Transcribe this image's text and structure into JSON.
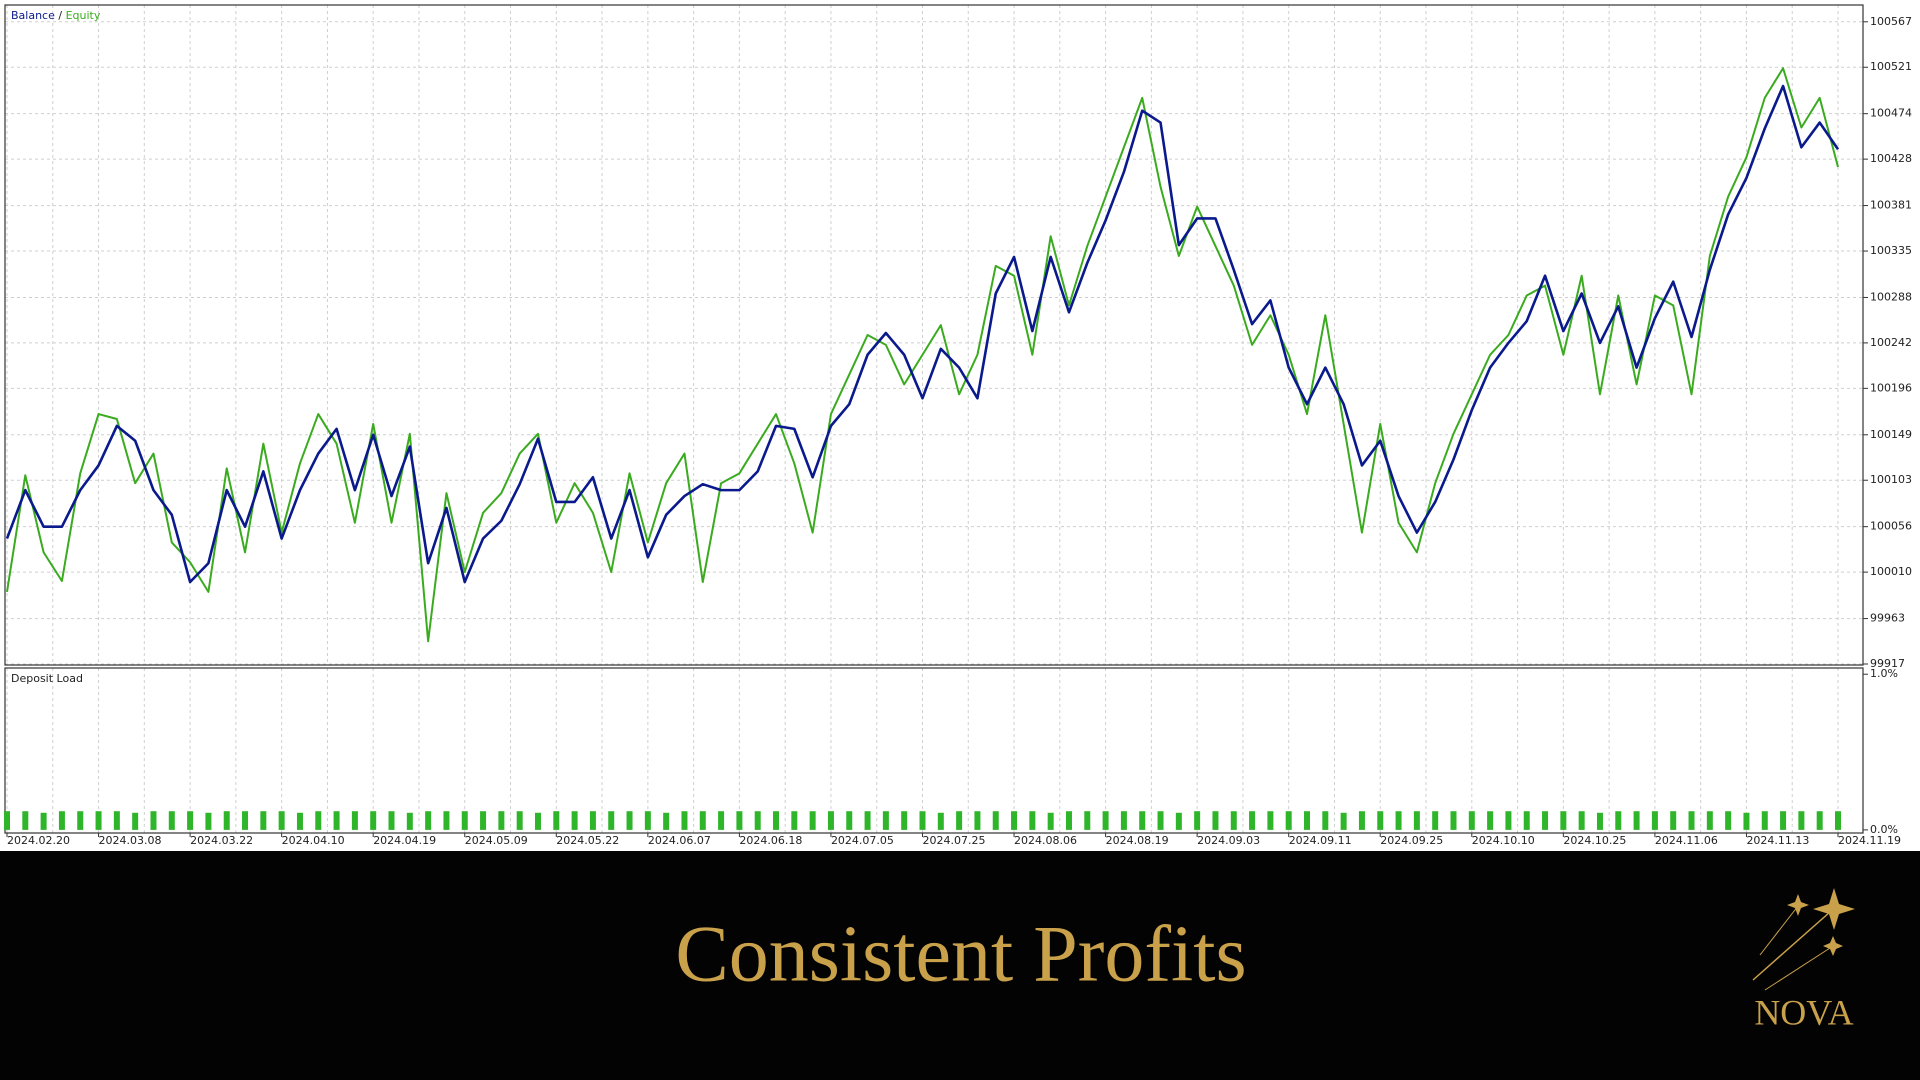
{
  "chart_data": {
    "type": "line",
    "legend_separator": " / ",
    "categories": [
      "2024.02.20",
      null,
      null,
      null,
      null,
      "2024.03.08",
      null,
      null,
      null,
      null,
      "2024.03.22",
      null,
      null,
      null,
      null,
      "2024.04.10",
      null,
      null,
      null,
      null,
      "2024.04.19",
      null,
      null,
      null,
      null,
      "2024.05.09",
      null,
      null,
      null,
      null,
      "2024.05.22",
      null,
      null,
      null,
      null,
      "2024.06.07",
      null,
      null,
      null,
      null,
      "2024.06.18",
      null,
      null,
      null,
      null,
      "2024.07.05",
      null,
      null,
      null,
      null,
      "2024.07.25",
      null,
      null,
      null,
      null,
      "2024.08.06",
      null,
      null,
      null,
      null,
      "2024.08.19",
      null,
      null,
      null,
      null,
      "2024.09.03",
      null,
      null,
      null,
      null,
      "2024.09.11",
      null,
      null,
      null,
      null,
      "2024.09.25",
      null,
      null,
      null,
      null,
      "2024.10.10",
      null,
      null,
      null,
      null,
      "2024.10.25",
      null,
      null,
      null,
      null,
      "2024.11.06",
      null,
      null,
      null,
      null,
      "2024.11.13",
      null,
      null,
      null,
      null,
      "2024.11.19"
    ],
    "series": [
      {
        "name": "Balance",
        "color": "#0a1a8c",
        "values": [
          100044,
          100093,
          100056,
          100056,
          100093,
          100118,
          100158,
          100143,
          100093,
          100068,
          100000,
          100019,
          100093,
          100056,
          100112,
          100044,
          100093,
          100130,
          100155,
          100093,
          100149,
          100087,
          100137,
          100019,
          100075,
          100000,
          100044,
          100062,
          100099,
          100145,
          100081,
          100081,
          100106,
          100044,
          100093,
          100025,
          100068,
          100087,
          100099,
          100093,
          100093,
          100112,
          100158,
          100155,
          100106,
          100158,
          100180,
          100230,
          100252,
          100230,
          100186,
          100236,
          100217,
          100186,
          100292,
          100329,
          100254,
          100329,
          100273,
          100323,
          100366,
          100415,
          100477,
          100465,
          100341,
          100368,
          100368,
          100316,
          100261,
          100285,
          100217,
          100180,
          100217,
          100180,
          100118,
          100143,
          100087,
          100050,
          100081,
          100124,
          100174,
          100217,
          100242,
          100264,
          100310,
          100254,
          100292,
          100242,
          100279,
          100217,
          100267,
          100304,
          100248,
          100316,
          100372,
          100409,
          100459,
          100502,
          100440,
          100465,
          100438
        ]
      },
      {
        "name": "Equity",
        "color": "#3aab1e",
        "values": [
          99990,
          100108,
          100030,
          100001,
          100110,
          100170,
          100165,
          100100,
          100130,
          100040,
          100020,
          99990,
          100115,
          100030,
          100140,
          100050,
          100120,
          100170,
          100140,
          100060,
          100160,
          100060,
          100150,
          99940,
          100090,
          100010,
          100070,
          100090,
          100130,
          100150,
          100060,
          100100,
          100070,
          100010,
          100110,
          100040,
          100100,
          100130,
          100000,
          100100,
          100110,
          100140,
          100170,
          100120,
          100050,
          100170,
          100210,
          100250,
          100240,
          100200,
          100230,
          100260,
          100190,
          100230,
          100320,
          100310,
          100230,
          100350,
          100280,
          100340,
          100390,
          100440,
          100490,
          100400,
          100330,
          100380,
          100340,
          100300,
          100240,
          100270,
          100230,
          100170,
          100270,
          100160,
          100050,
          100160,
          100060,
          100030,
          100100,
          100150,
          100190,
          100230,
          100250,
          100290,
          100300,
          100230,
          100310,
          100190,
          100290,
          100200,
          100290,
          100280,
          100190,
          100330,
          100390,
          100430,
          100490,
          100520,
          100460,
          100490,
          100420
        ]
      }
    ],
    "ylim": [
      99916,
      100584
    ],
    "yticks": [
      99917,
      99963,
      100010,
      100056,
      100103,
      100149,
      100196,
      100242,
      100288,
      100335,
      100381,
      100428,
      100474,
      100521,
      100567
    ],
    "grid": true,
    "deposit_load": {
      "type": "bar",
      "title": "Deposit Load",
      "color": "#2fb52a",
      "values": [
        0.12,
        0.12,
        0.11,
        0.12,
        0.12,
        0.12,
        0.12,
        0.11,
        0.12,
        0.12,
        0.12,
        0.11,
        0.12,
        0.12,
        0.12,
        0.12,
        0.11,
        0.12,
        0.12,
        0.12,
        0.12,
        0.12,
        0.11,
        0.12,
        0.12,
        0.12,
        0.12,
        0.12,
        0.12,
        0.11,
        0.12,
        0.12,
        0.12,
        0.12,
        0.12,
        0.12,
        0.11,
        0.12,
        0.12,
        0.12,
        0.12,
        0.12,
        0.12,
        0.12,
        0.12,
        0.12,
        0.12,
        0.12,
        0.12,
        0.12,
        0.12,
        0.11,
        0.12,
        0.12,
        0.12,
        0.12,
        0.12,
        0.11,
        0.12,
        0.12,
        0.12,
        0.12,
        0.12,
        0.12,
        0.11,
        0.12,
        0.12,
        0.12,
        0.12,
        0.12,
        0.12,
        0.12,
        0.12,
        0.11,
        0.12,
        0.12,
        0.12,
        0.12,
        0.12,
        0.12,
        0.12,
        0.12,
        0.12,
        0.12,
        0.12,
        0.12,
        0.12,
        0.11,
        0.12,
        0.12,
        0.12,
        0.12,
        0.12,
        0.12,
        0.12,
        0.11,
        0.12,
        0.12,
        0.12,
        0.12,
        0.12
      ],
      "ylim": [
        -0.02,
        1.04
      ],
      "yticks": [
        {
          "value": 1,
          "label": "1.0%"
        },
        {
          "value": 0,
          "label": "0.0%"
        }
      ]
    }
  },
  "banner": {
    "title": "Consistent Profits",
    "logo": "NOVA"
  }
}
